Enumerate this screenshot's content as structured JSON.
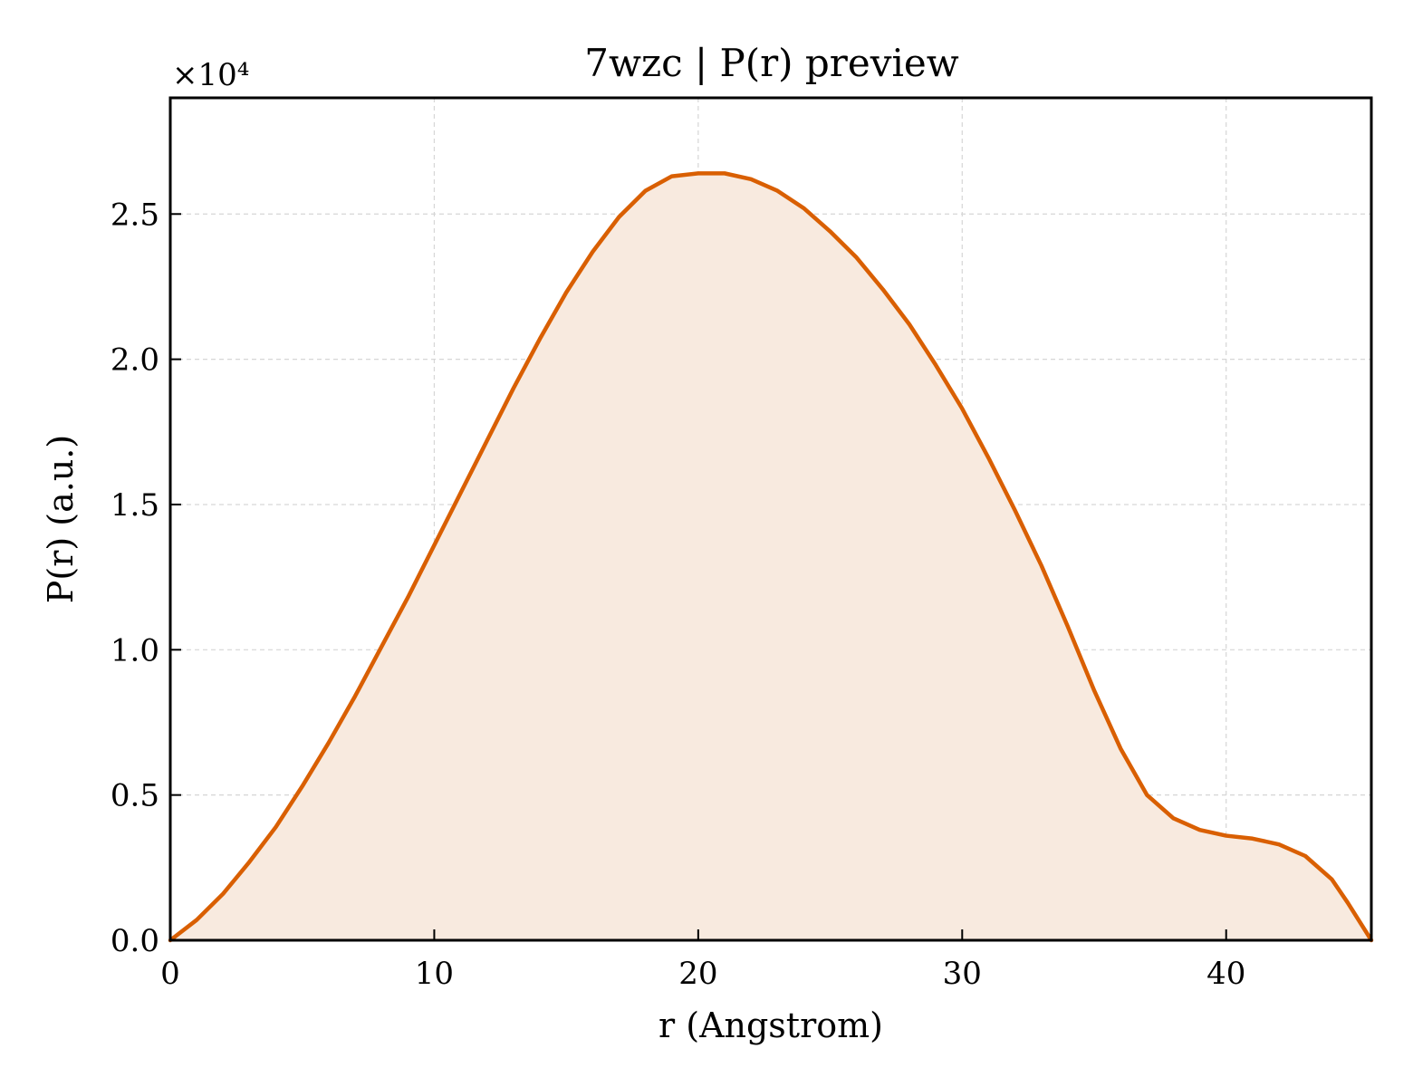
{
  "chart_data": {
    "type": "area",
    "title": "7wzc | P(r) preview",
    "xlabel": "r (Angstrom)",
    "ylabel": "P(r) (a.u.)",
    "y_offset_label": "×10⁴",
    "xlim": [
      0,
      45.5
    ],
    "ylim": [
      0,
      29000
    ],
    "xticks": [
      0,
      10,
      20,
      30,
      40
    ],
    "xtick_labels": [
      "0",
      "10",
      "20",
      "30",
      "40"
    ],
    "yticks": [
      0,
      5000,
      10000,
      15000,
      20000,
      25000
    ],
    "ytick_labels": [
      "0.0",
      "0.5",
      "1.0",
      "1.5",
      "2.0",
      "2.5"
    ],
    "grid": true,
    "colors": {
      "line": "#d95f02",
      "fill": "#f8eadf"
    },
    "series": [
      {
        "x": [
          0,
          1,
          2,
          3,
          4,
          5,
          6,
          7,
          8,
          9,
          10,
          11,
          12,
          13,
          14,
          15,
          16,
          17,
          18,
          19,
          20,
          21,
          22,
          23,
          24,
          25,
          26,
          27,
          28,
          29,
          30,
          31,
          32,
          33,
          34,
          35,
          36,
          37,
          38,
          39,
          40,
          41,
          42,
          43,
          44,
          44.6,
          45.5
        ],
        "y": [
          0,
          700,
          1600,
          2700,
          3900,
          5300,
          6800,
          8400,
          10100,
          11800,
          13600,
          15400,
          17200,
          19000,
          20700,
          22300,
          23700,
          24900,
          25800,
          26300,
          26400,
          26400,
          26200,
          25800,
          25200,
          24400,
          23500,
          22400,
          21200,
          19800,
          18300,
          16600,
          14800,
          12900,
          10800,
          8600,
          6600,
          5000,
          4200,
          3800,
          3600,
          3500,
          3300,
          2900,
          2100,
          1300,
          0
        ]
      }
    ]
  }
}
